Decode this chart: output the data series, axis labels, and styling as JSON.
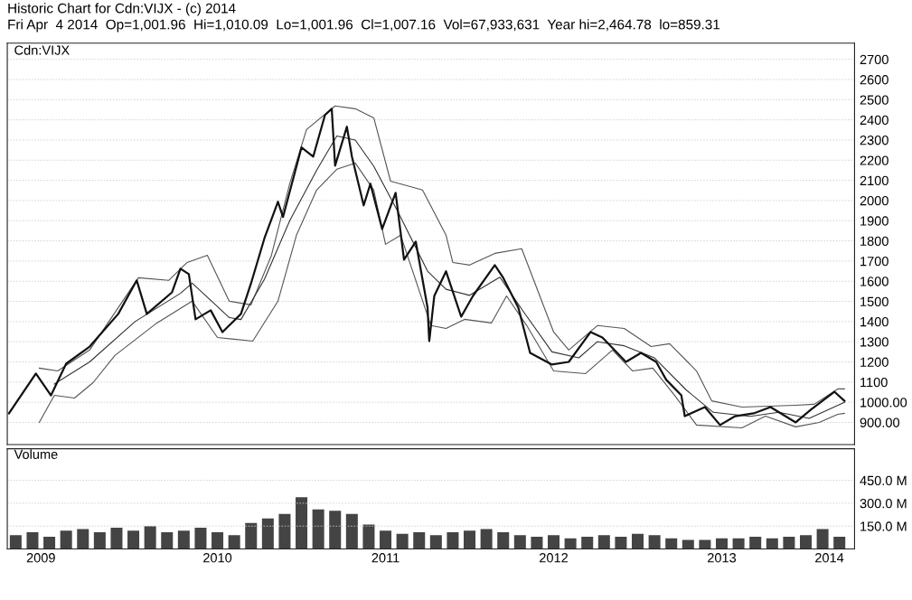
{
  "chart_data": [
    {
      "type": "line",
      "title": "Historic Chart for Cdn:VIJX - (c) 2014",
      "subtitle": "Fri Apr  4 2014  Op=1,001.96  Hi=1,010.09  Lo=1,001.96  Cl=1,007.16  Vol=67,933,631  Year hi=2,464.78  lo=859.31",
      "annotations": [
        "Cdn:VIJX"
      ],
      "xlim": [
        2009.25,
        2014.29
      ],
      "ylim": [
        790,
        2780
      ],
      "yticks": [
        {
          "value": 900,
          "label": "900.00"
        },
        {
          "value": 1000,
          "label": "1000.00"
        },
        1100,
        1200,
        1300,
        1400,
        1500,
        1600,
        1700,
        1800,
        1900,
        2000,
        2100,
        2200,
        2300,
        2400,
        2500,
        2600,
        2700
      ],
      "tick_labels": "y",
      "grid": "y",
      "series": [
        {
          "color": "#555555",
          "x": [
            2009.44,
            2009.55,
            2009.74,
            2010.03,
            2010.21,
            2010.32,
            2010.44,
            2010.57,
            2010.7,
            2010.82,
            2010.93,
            2011.03,
            2011.2,
            2011.32,
            2011.43,
            2011.53,
            2011.72,
            2011.86,
            2011.9,
            2012.0,
            2012.15,
            2012.31,
            2012.5,
            2012.59,
            2012.76,
            2012.92,
            2013.08,
            2013.19,
            2013.35,
            2013.44,
            2013.62,
            2013.94,
            2014.05,
            2014.19,
            2014.23
          ],
          "values": [
            1169,
            1155,
            1259,
            1617,
            1604,
            1693,
            1729,
            1501,
            1483,
            1725,
            2083,
            2352,
            2469,
            2455,
            2410,
            2096,
            2052,
            1828,
            1693,
            1680,
            1738,
            1761,
            1348,
            1259,
            1380,
            1366,
            1276,
            1290,
            1155,
            1007,
            976,
            985,
            990,
            1066,
            1066
          ]
        },
        {
          "color": "#555555",
          "x": [
            2009.44,
            2009.53,
            2009.65,
            2009.76,
            2009.89,
            2010.14,
            2010.35,
            2010.5,
            2010.71,
            2010.86,
            2010.97,
            2011.09,
            2011.21,
            2011.32,
            2011.43,
            2011.5,
            2011.59,
            2011.77,
            2011.86,
            2011.97,
            2012.13,
            2012.22,
            2012.34,
            2012.5,
            2012.69,
            2012.85,
            2012.97,
            2013.09,
            2013.22,
            2013.35,
            2013.62,
            2013.76,
            2013.94,
            2014.08,
            2014.19,
            2014.23
          ],
          "values": [
            900,
            1034,
            1021,
            1097,
            1232,
            1393,
            1501,
            1321,
            1303,
            1501,
            1828,
            2052,
            2155,
            2186,
            2052,
            1783,
            1828,
            1380,
            1366,
            1411,
            1393,
            1527,
            1380,
            1155,
            1142,
            1259,
            1155,
            1169,
            1034,
            887,
            873,
            931,
            878,
            900,
            940,
            945
          ]
        },
        {
          "color": "#333333",
          "x": [
            2009.53,
            2009.74,
            2010.01,
            2010.28,
            2010.35,
            2010.57,
            2010.64,
            2010.78,
            2010.93,
            2011.09,
            2011.21,
            2011.32,
            2011.43,
            2011.57,
            2011.75,
            2011.86,
            2012.0,
            2012.18,
            2012.32,
            2012.49,
            2012.65,
            2012.76,
            2012.92,
            2013.1,
            2013.29,
            2013.45,
            2013.67,
            2013.84,
            2014.02,
            2014.23
          ],
          "values": [
            1090,
            1200,
            1400,
            1540,
            1590,
            1420,
            1410,
            1610,
            1900,
            2150,
            2320,
            2300,
            2170,
            1950,
            1650,
            1560,
            1530,
            1620,
            1450,
            1250,
            1220,
            1300,
            1280,
            1220,
            1060,
            950,
            930,
            950,
            920,
            1000
          ]
        },
        {
          "color": "#111111",
          "x": [
            2009.26,
            2009.42,
            2009.51,
            2009.6,
            2009.74,
            2009.91,
            2010.02,
            2010.08,
            2010.23,
            2010.28,
            2010.33,
            2010.37,
            2010.46,
            2010.53,
            2010.64,
            2010.7,
            2010.78,
            2010.86,
            2010.89,
            2011.0,
            2011.07,
            2011.14,
            2011.18,
            2011.2,
            2011.27,
            2011.3,
            2011.37,
            2011.41,
            2011.48,
            2011.56,
            2011.61,
            2011.68,
            2011.75,
            2011.76,
            2011.79,
            2011.86,
            2011.95,
            2012.02,
            2012.15,
            2012.2,
            2012.29,
            2012.36,
            2012.49,
            2012.59,
            2012.72,
            2012.79,
            2012.93,
            2013.02,
            2013.11,
            2013.17,
            2013.26,
            2013.28,
            2013.4,
            2013.49,
            2013.58,
            2013.69,
            2013.79,
            2013.94,
            2014.03,
            2014.17,
            2014.23
          ],
          "values": [
            945,
            1142,
            1034,
            1191,
            1276,
            1438,
            1604,
            1438,
            1545,
            1662,
            1635,
            1411,
            1456,
            1348,
            1438,
            1590,
            1814,
            1994,
            1918,
            2263,
            2218,
            2424,
            2455,
            2173,
            2366,
            2218,
            1976,
            2083,
            1859,
            2038,
            1707,
            1796,
            1469,
            1303,
            1527,
            1649,
            1424,
            1527,
            1680,
            1617,
            1469,
            1245,
            1187,
            1200,
            1348,
            1321,
            1200,
            1245,
            1200,
            1111,
            1034,
            931,
            976,
            887,
            931,
            945,
            976,
            900,
            963,
            1052,
            1007
          ]
        }
      ]
    },
    {
      "type": "bar",
      "annotations": [
        "Volume"
      ],
      "xlim": [
        2009.25,
        2014.29
      ],
      "xticks": [
        {
          "value": 2009.45,
          "label": "2009"
        },
        {
          "value": 2010.5,
          "label": "2010"
        },
        {
          "value": 2011.5,
          "label": "2011"
        },
        {
          "value": 2012.5,
          "label": "2012"
        },
        {
          "value": 2013.5,
          "label": "2013"
        },
        {
          "value": 2014.14,
          "label": "2014"
        }
      ],
      "ylim": [
        0,
        657
      ],
      "yticks": [
        {
          "value": 150,
          "label": "150.0 M"
        },
        {
          "value": 300,
          "label": "300.0 M"
        },
        {
          "value": 450,
          "label": "450.0 M"
        }
      ],
      "grid": "y",
      "series": [
        {
          "color": "#444444",
          "x": [
            2009.3,
            2009.4,
            2009.5,
            2009.6,
            2009.7,
            2009.8,
            2009.9,
            2010.0,
            2010.1,
            2010.2,
            2010.3,
            2010.4,
            2010.5,
            2010.6,
            2010.7,
            2010.8,
            2010.9,
            2011.0,
            2011.1,
            2011.2,
            2011.3,
            2011.4,
            2011.5,
            2011.6,
            2011.7,
            2011.8,
            2011.9,
            2012.0,
            2012.1,
            2012.2,
            2012.3,
            2012.4,
            2012.5,
            2012.6,
            2012.7,
            2012.8,
            2012.9,
            2013.0,
            2013.1,
            2013.2,
            2013.3,
            2013.4,
            2013.5,
            2013.6,
            2013.7,
            2013.8,
            2013.9,
            2014.0,
            2014.1,
            2014.2
          ],
          "values": [
            90,
            110,
            80,
            120,
            130,
            110,
            140,
            120,
            150,
            110,
            120,
            140,
            110,
            90,
            170,
            200,
            230,
            340,
            260,
            250,
            230,
            160,
            120,
            100,
            110,
            90,
            110,
            120,
            130,
            110,
            90,
            80,
            90,
            70,
            80,
            90,
            80,
            100,
            90,
            70,
            60,
            60,
            70,
            70,
            80,
            70,
            80,
            90,
            130,
            80
          ]
        }
      ]
    }
  ]
}
